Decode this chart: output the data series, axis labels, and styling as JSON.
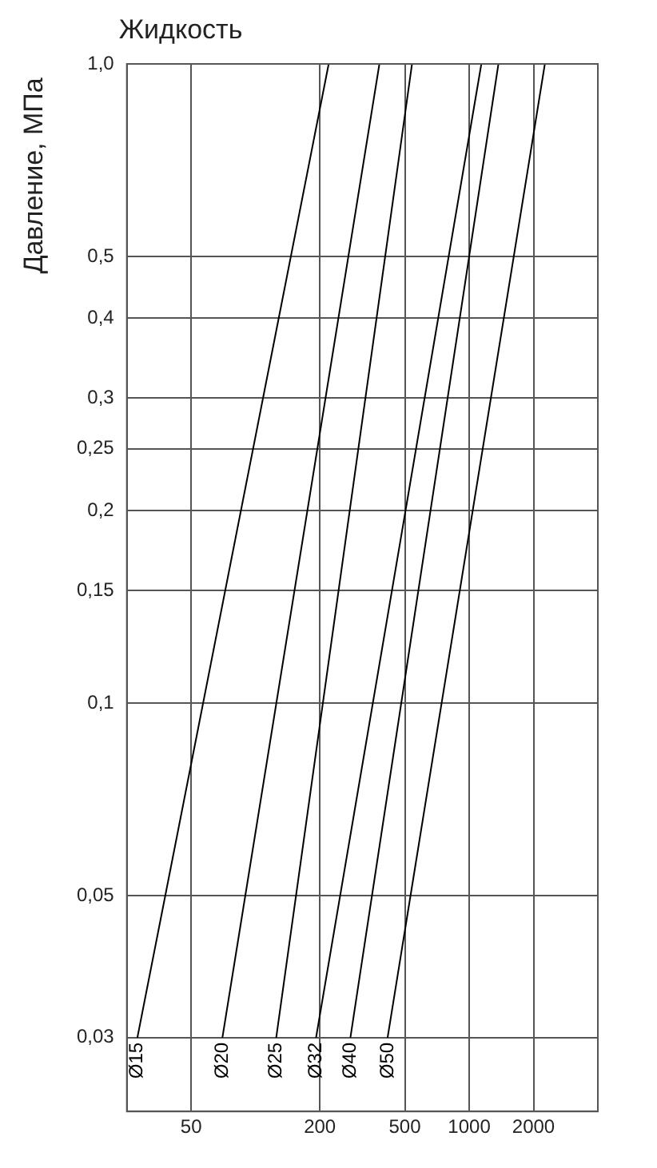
{
  "chart_data": {
    "type": "line",
    "title": "Жидкость",
    "ylabel": "Давление, МПа",
    "series": [
      {
        "name": "Ø15",
        "color": "#000000",
        "x": [
          28,
          220
        ],
        "values": [
          0.03,
          1.0
        ]
      },
      {
        "name": "Ø20",
        "color": "#000000",
        "x": [
          70,
          380
        ],
        "values": [
          0.03,
          1.0
        ]
      },
      {
        "name": "Ø25",
        "color": "#000000",
        "x": [
          125,
          540
        ],
        "values": [
          0.03,
          1.0
        ]
      },
      {
        "name": "Ø32",
        "color": "#000000",
        "x": [
          192,
          1140
        ],
        "values": [
          0.03,
          1.0
        ]
      },
      {
        "name": "Ø40",
        "color": "#000000",
        "x": [
          278,
          1370
        ],
        "values": [
          0.03,
          1.0
        ]
      },
      {
        "name": "Ø50",
        "color": "#000000",
        "x": [
          415,
          2260
        ],
        "values": [
          0.03,
          1.0
        ]
      }
    ],
    "xlim": [
      25,
      4000
    ],
    "xticks": [
      50,
      200,
      500,
      1000,
      2000
    ],
    "ylim": [
      0.023,
      1.0
    ],
    "yticks": [
      {
        "value": 0.03,
        "label": "0,03"
      },
      {
        "value": 0.05,
        "label": "0,05"
      },
      {
        "value": 0.1,
        "label": "0,1"
      },
      {
        "value": 0.15,
        "label": "0,15"
      },
      {
        "value": 0.2,
        "label": "0,2"
      },
      {
        "value": 0.25,
        "label": "0,25"
      },
      {
        "value": 0.3,
        "label": "0,3"
      },
      {
        "value": 0.4,
        "label": "0,4"
      },
      {
        "value": 0.5,
        "label": "0,5"
      },
      {
        "value": 1.0,
        "label": "1,0"
      }
    ],
    "log": "xy",
    "grid": true,
    "legend": false,
    "marker": "none",
    "line_style": "solid"
  }
}
